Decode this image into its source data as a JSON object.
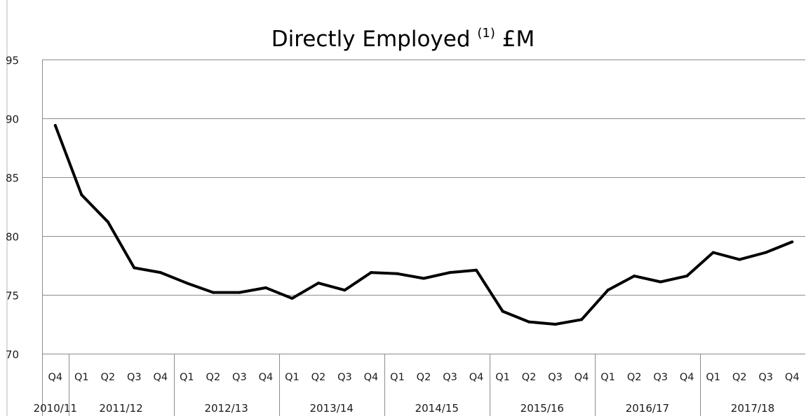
{
  "chart_data": {
    "type": "line",
    "title": "Directly Employed",
    "title_superscript": "(1)",
    "title_unit": "£M",
    "xlabel": "",
    "ylabel": "",
    "ylim": [
      70,
      95
    ],
    "yticks": [
      70,
      75,
      80,
      85,
      90,
      95
    ],
    "grid": true,
    "legend": "none",
    "line_color": "#000000",
    "categories": [
      {
        "quarter": "Q4",
        "year": "2010/11"
      },
      {
        "quarter": "Q1",
        "year": "2011/12"
      },
      {
        "quarter": "Q2",
        "year": "2011/12"
      },
      {
        "quarter": "Q3",
        "year": "2011/12"
      },
      {
        "quarter": "Q4",
        "year": "2011/12"
      },
      {
        "quarter": "Q1",
        "year": "2012/13"
      },
      {
        "quarter": "Q2",
        "year": "2012/13"
      },
      {
        "quarter": "Q3",
        "year": "2012/13"
      },
      {
        "quarter": "Q4",
        "year": "2012/13"
      },
      {
        "quarter": "Q1",
        "year": "2013/14"
      },
      {
        "quarter": "Q2",
        "year": "2013/14"
      },
      {
        "quarter": "Q3",
        "year": "2013/14"
      },
      {
        "quarter": "Q4",
        "year": "2013/14"
      },
      {
        "quarter": "Q1",
        "year": "2014/15"
      },
      {
        "quarter": "Q2",
        "year": "2014/15"
      },
      {
        "quarter": "Q3",
        "year": "2014/15"
      },
      {
        "quarter": "Q4",
        "year": "2014/15"
      },
      {
        "quarter": "Q1",
        "year": "2015/16"
      },
      {
        "quarter": "Q2",
        "year": "2015/16"
      },
      {
        "quarter": "Q3",
        "year": "2015/16"
      },
      {
        "quarter": "Q4",
        "year": "2015/16"
      },
      {
        "quarter": "Q1",
        "year": "2016/17"
      },
      {
        "quarter": "Q2",
        "year": "2016/17"
      },
      {
        "quarter": "Q3",
        "year": "2016/17"
      },
      {
        "quarter": "Q4",
        "year": "2016/17"
      },
      {
        "quarter": "Q1",
        "year": "2017/18"
      },
      {
        "quarter": "Q2",
        "year": "2017/18"
      },
      {
        "quarter": "Q3",
        "year": "2017/18"
      },
      {
        "quarter": "Q4",
        "year": "2017/18"
      }
    ],
    "years": [
      "2010/11",
      "2011/12",
      "2012/13",
      "2013/14",
      "2014/15",
      "2015/16",
      "2016/17",
      "2017/18"
    ],
    "values": [
      89.4,
      83.5,
      81.2,
      77.3,
      76.9,
      76.0,
      75.2,
      75.2,
      75.6,
      74.7,
      76.0,
      75.4,
      76.9,
      76.8,
      76.4,
      76.9,
      77.1,
      73.6,
      72.7,
      72.5,
      72.9,
      75.4,
      76.6,
      76.1,
      76.6,
      78.6,
      78.0,
      78.6,
      79.5
    ]
  }
}
